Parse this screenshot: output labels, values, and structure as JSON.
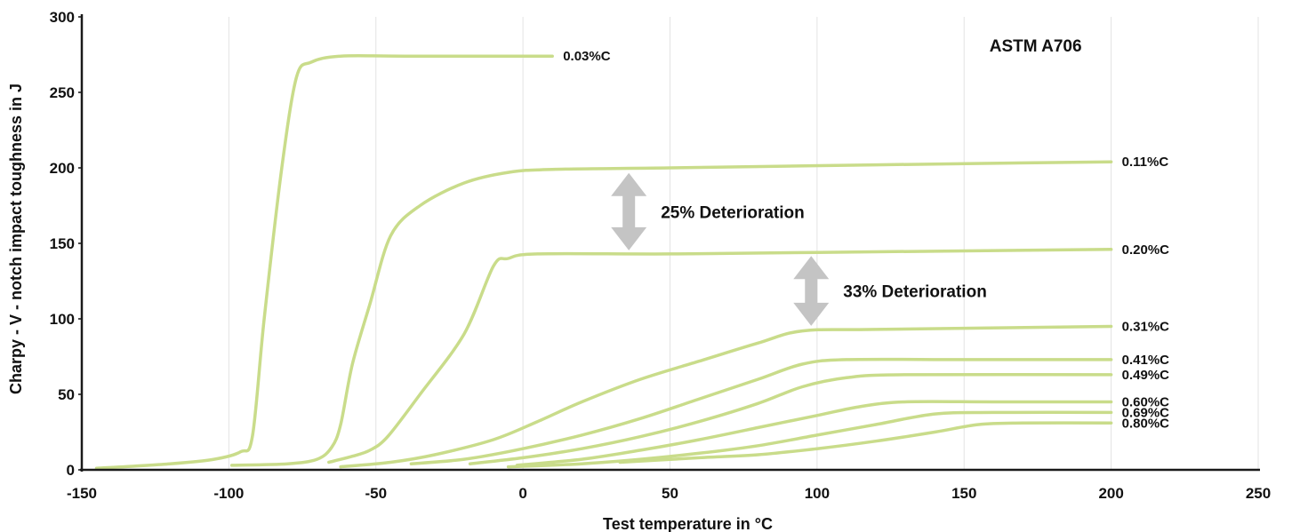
{
  "chart_data": {
    "type": "line",
    "title": "ASTM A706",
    "xlabel": "Test temperature in °C",
    "ylabel": "Charpy - V - notch impact toughness in J",
    "xlim": [
      -150,
      250
    ],
    "ylim": [
      0,
      300
    ],
    "x_ticks": [
      "-150",
      "-100",
      "-50",
      "0",
      "50",
      "100",
      "150",
      "200",
      "250"
    ],
    "y_ticks": [
      "0",
      "50",
      "100",
      "150",
      "200",
      "250",
      "300"
    ],
    "grid": "vertical",
    "line_color": "#c9dc8a",
    "series": [
      {
        "name": "0.03%C",
        "points": [
          [
            -145,
            1
          ],
          [
            -120,
            4
          ],
          [
            -105,
            7
          ],
          [
            -96,
            12
          ],
          [
            -92,
            22
          ],
          [
            -88,
            100
          ],
          [
            -82,
            200
          ],
          [
            -77,
            260
          ],
          [
            -72,
            270
          ],
          [
            -62,
            274
          ],
          [
            -40,
            274
          ],
          [
            10,
            274
          ]
        ]
      },
      {
        "name": "0.11%C",
        "points": [
          [
            -99,
            3
          ],
          [
            -80,
            4
          ],
          [
            -70,
            7
          ],
          [
            -65,
            15
          ],
          [
            -62,
            30
          ],
          [
            -58,
            70
          ],
          [
            -52,
            110
          ],
          [
            -45,
            155
          ],
          [
            -35,
            175
          ],
          [
            -20,
            190
          ],
          [
            -5,
            197
          ],
          [
            10,
            199
          ],
          [
            50,
            200
          ],
          [
            120,
            202
          ],
          [
            200,
            204
          ]
        ]
      },
      {
        "name": "0.20%C",
        "points": [
          [
            -66,
            5
          ],
          [
            -58,
            9
          ],
          [
            -52,
            13
          ],
          [
            -46,
            22
          ],
          [
            -35,
            50
          ],
          [
            -20,
            90
          ],
          [
            -10,
            135
          ],
          [
            -5,
            140
          ],
          [
            5,
            143
          ],
          [
            50,
            143
          ],
          [
            100,
            144
          ],
          [
            200,
            146
          ]
        ]
      },
      {
        "name": "0.31%C",
        "points": [
          [
            -62,
            2
          ],
          [
            -45,
            5
          ],
          [
            -30,
            10
          ],
          [
            -10,
            20
          ],
          [
            5,
            32
          ],
          [
            20,
            45
          ],
          [
            40,
            60
          ],
          [
            60,
            72
          ],
          [
            80,
            84
          ],
          [
            95,
            92
          ],
          [
            120,
            93
          ],
          [
            200,
            95
          ]
        ]
      },
      {
        "name": "0.41%C",
        "points": [
          [
            -38,
            4
          ],
          [
            -20,
            7
          ],
          [
            0,
            14
          ],
          [
            20,
            23
          ],
          [
            40,
            34
          ],
          [
            60,
            47
          ],
          [
            80,
            60
          ],
          [
            95,
            70
          ],
          [
            110,
            73
          ],
          [
            150,
            73
          ],
          [
            200,
            73
          ]
        ]
      },
      {
        "name": "0.49%C",
        "points": [
          [
            -18,
            4
          ],
          [
            0,
            8
          ],
          [
            20,
            14
          ],
          [
            40,
            22
          ],
          [
            60,
            32
          ],
          [
            80,
            44
          ],
          [
            95,
            55
          ],
          [
            110,
            61
          ],
          [
            130,
            63
          ],
          [
            200,
            63
          ]
        ]
      },
      {
        "name": "0.60%C",
        "points": [
          [
            -2,
            3
          ],
          [
            20,
            7
          ],
          [
            40,
            13
          ],
          [
            60,
            20
          ],
          [
            80,
            28
          ],
          [
            100,
            36
          ],
          [
            115,
            42
          ],
          [
            130,
            45
          ],
          [
            160,
            45
          ],
          [
            200,
            45
          ]
        ]
      },
      {
        "name": "0.69%C",
        "points": [
          [
            -5,
            2
          ],
          [
            20,
            4
          ],
          [
            40,
            7
          ],
          [
            60,
            11
          ],
          [
            80,
            16
          ],
          [
            100,
            23
          ],
          [
            120,
            30
          ],
          [
            140,
            37
          ],
          [
            160,
            38
          ],
          [
            200,
            38
          ]
        ]
      },
      {
        "name": "0.80%C",
        "points": [
          [
            33,
            5
          ],
          [
            60,
            8
          ],
          [
            80,
            10
          ],
          [
            100,
            14
          ],
          [
            120,
            19
          ],
          [
            140,
            25
          ],
          [
            155,
            30
          ],
          [
            170,
            31
          ],
          [
            200,
            31
          ]
        ]
      }
    ],
    "annotations": [
      {
        "text": "25% Deterioration",
        "x_data": 36,
        "y_from": 199,
        "y_to": 143
      },
      {
        "text": "33% Deterioration",
        "x_data": 98,
        "y_from": 144,
        "y_to": 93
      }
    ],
    "arrow_color": "#c4c4c4"
  }
}
